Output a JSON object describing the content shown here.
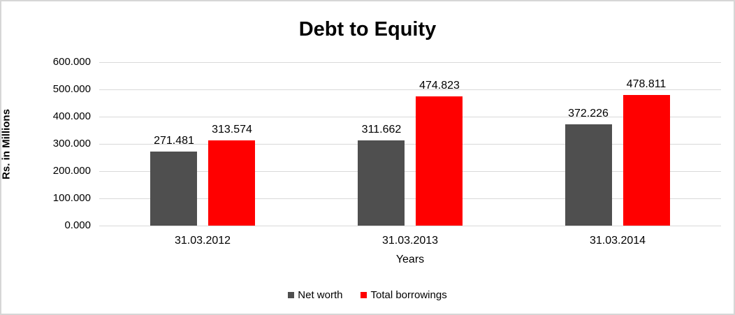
{
  "chart_data": {
    "type": "bar",
    "title": "Debt to Equity",
    "xlabel": "Years",
    "ylabel": "Rs. in Millions",
    "categories": [
      "31.03.2012",
      "31.03.2013",
      "31.03.2014"
    ],
    "series": [
      {
        "name": "Net worth",
        "color": "#4f4f4f",
        "values": [
          271.481,
          311.662,
          372.226
        ],
        "data_labels": [
          "271.481",
          "311.662",
          "372.226"
        ]
      },
      {
        "name": "Total borrowings",
        "color": "#ff0000",
        "values": [
          313.574,
          474.823,
          478.811
        ],
        "data_labels": [
          "313.574",
          "474.823",
          "478.811"
        ]
      }
    ],
    "ylim": [
      0,
      600
    ],
    "ytick_step": 100,
    "ytick_labels": [
      "0.000",
      "100.000",
      "200.000",
      "300.000",
      "400.000",
      "500.000",
      "600.000"
    ],
    "grid": true,
    "legend_position": "bottom"
  },
  "colors": {
    "gridline": "#d9d9d9",
    "frame_border": "#d6d6d6",
    "text": "#000000",
    "background": "#ffffff"
  }
}
